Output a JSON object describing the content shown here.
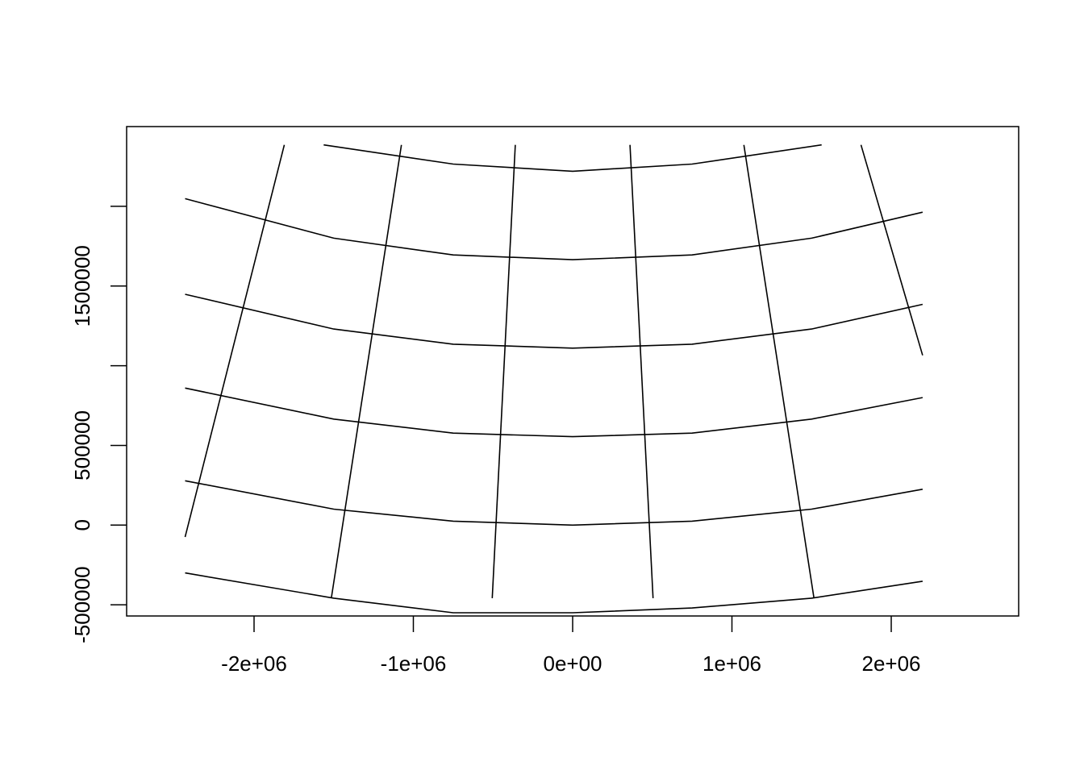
{
  "chart_data": {
    "type": "line",
    "title": "",
    "xlabel": "",
    "ylabel": "",
    "xlim": [
      -2800000,
      2800000
    ],
    "ylim": [
      -570000,
      2500000
    ],
    "grid": false,
    "legend": "none",
    "x_ticks": [
      {
        "value": -2000000,
        "label": "-2e+06"
      },
      {
        "value": -1000000,
        "label": "-1e+06"
      },
      {
        "value": 0,
        "label": "0e+00"
      },
      {
        "value": 1000000,
        "label": "1e+06"
      },
      {
        "value": 2000000,
        "label": "2e+06"
      }
    ],
    "y_ticks": [
      {
        "value": -500000,
        "label": "-500000"
      },
      {
        "value": 0,
        "label": "0"
      },
      {
        "value": 500000,
        "label": "500000"
      },
      {
        "value": 1000000,
        "label": ""
      },
      {
        "value": 1500000,
        "label": "1500000"
      },
      {
        "value": 2000000,
        "label": ""
      }
    ],
    "series": [
      {
        "x": [
          -2433000,
          -1500000,
          -750000,
          0,
          750000,
          1500000,
          2197000
        ],
        "y": [
          -300000,
          -458000,
          -550000,
          -550000,
          -520000,
          -458000,
          -352000
        ]
      },
      {
        "x": [
          -2433000,
          -1500000,
          -750000,
          0,
          750000,
          1500000,
          2197000
        ],
        "y": [
          278000,
          100000,
          25000,
          0,
          25000,
          100000,
          225000
        ]
      },
      {
        "x": [
          -2433000,
          -1500000,
          -750000,
          0,
          750000,
          1500000,
          2197000
        ],
        "y": [
          860000,
          665000,
          577000,
          555000,
          577000,
          665000,
          800000
        ]
      },
      {
        "x": [
          -2433000,
          -1500000,
          -750000,
          0,
          750000,
          1500000,
          2197000
        ],
        "y": [
          1448000,
          1230000,
          1135000,
          1110000,
          1135000,
          1230000,
          1385000
        ]
      },
      {
        "x": [
          -2433000,
          -1500000,
          -750000,
          0,
          750000,
          1500000,
          2197000
        ],
        "y": [
          2048000,
          1800000,
          1695000,
          1665000,
          1695000,
          1800000,
          1963000
        ]
      },
      {
        "x": [
          -1563000,
          -750000,
          0,
          750000,
          1563000
        ],
        "y": [
          2385000,
          2265000,
          2220000,
          2265000,
          2385000
        ]
      },
      {
        "x": [
          -2433000,
          -1810000
        ],
        "y": [
          -75000,
          2385000
        ]
      },
      {
        "x": [
          -1515000,
          -1075000
        ],
        "y": [
          -458000,
          2385000
        ]
      },
      {
        "x": [
          -505000,
          -360000
        ],
        "y": [
          -458000,
          2385000
        ]
      },
      {
        "x": [
          505000,
          360000
        ],
        "y": [
          -458000,
          2385000
        ]
      },
      {
        "x": [
          1515000,
          1075000
        ],
        "y": [
          -458000,
          2385000
        ]
      },
      {
        "x": [
          2197000,
          1810000
        ],
        "y": [
          1065000,
          2385000
        ]
      }
    ]
  }
}
